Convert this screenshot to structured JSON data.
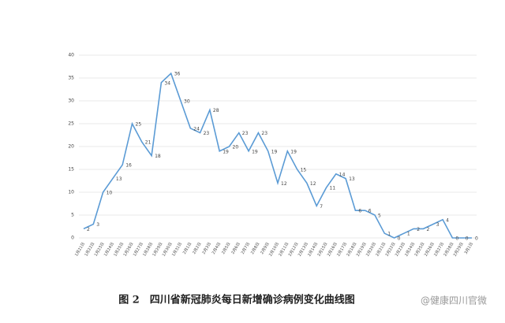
{
  "chart_data": {
    "type": "line",
    "caption": "图 2　四川省新冠肺炎每日新增确诊病例变化曲线图",
    "watermark": "@健康四川官微",
    "categories": [
      "1月21日",
      "1月22日",
      "1月23日",
      "1月24日",
      "1月25日",
      "1月26日",
      "1月27日",
      "1月28日",
      "1月29日",
      "1月30日",
      "1月31日",
      "2月1日",
      "2月2日",
      "2月3日",
      "2月4日",
      "2月5日",
      "2月6日",
      "2月7日",
      "2月8日",
      "2月9日",
      "2月10日",
      "2月11日",
      "2月12日",
      "2月13日",
      "2月14日",
      "2月15日",
      "2月16日",
      "2月17日",
      "2月18日",
      "2月19日",
      "2月20日",
      "2月21日",
      "2月22日",
      "2月23日",
      "2月24日",
      "2月25日",
      "2月26日",
      "2月27日",
      "2月28日",
      "2月29日",
      "3月1日"
    ],
    "values": [
      2,
      3,
      10,
      13,
      16,
      25,
      21,
      18,
      34,
      36,
      30,
      24,
      23,
      28,
      19,
      20,
      23,
      19,
      23,
      19,
      12,
      19,
      15,
      12,
      7,
      11,
      14,
      13,
      6,
      6,
      5,
      1,
      0,
      1,
      2,
      2,
      3,
      4,
      0,
      0,
      0
    ],
    "color": "#5b9bd5",
    "ylim": [
      0,
      40
    ],
    "yticks": [
      0,
      5,
      10,
      15,
      20,
      25,
      30,
      35,
      40
    ],
    "grid": true
  }
}
